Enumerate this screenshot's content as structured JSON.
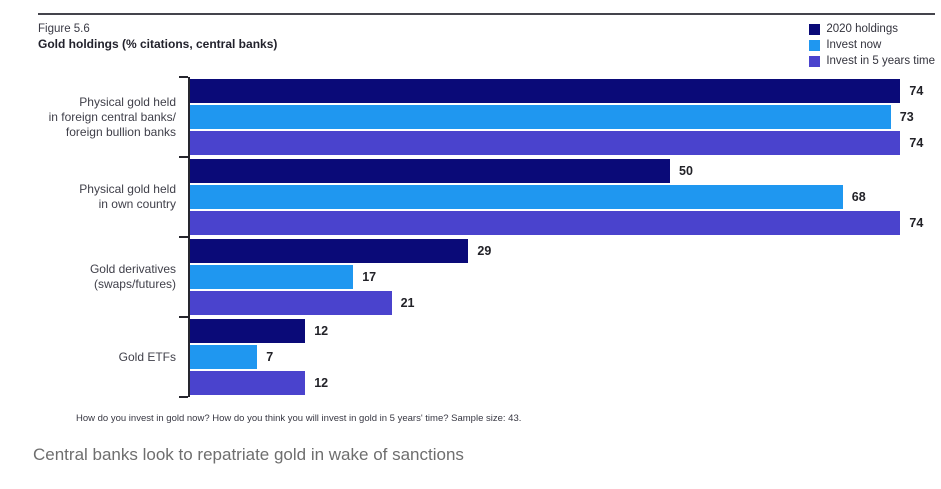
{
  "figure": {
    "label": "Figure 5.6",
    "title": "Gold holdings (% citations, central banks)",
    "footnote": "How do you invest in gold now? How do you think you will invest in gold in 5 years' time? Sample size: 43.",
    "caption": "Central banks look to repatriate gold in wake of sanctions"
  },
  "colors": {
    "series_2020_holdings": "#0a0a78",
    "series_invest_now": "#1f97f0",
    "series_invest_5_years": "#4a43cd",
    "axis": "#26262e",
    "rule": "#44444c",
    "caption_text": "#6e6e6e"
  },
  "chart_data": {
    "type": "bar",
    "orientation": "horizontal",
    "title": "Gold holdings (% citations, central banks)",
    "xlabel": "",
    "ylabel": "",
    "grid": false,
    "legend_position": "top-right",
    "value_axis_range": [
      0,
      77
    ],
    "data_labels": true,
    "categories": [
      "Physical gold held\nin foreign central banks/\nforeign bullion banks",
      "Physical gold held\nin own country",
      "Gold derivatives\n(swaps/futures)",
      "Gold ETFs"
    ],
    "series": [
      {
        "name": "2020 holdings",
        "color": "#0a0a78",
        "values": [
          74,
          50,
          29,
          12
        ]
      },
      {
        "name": "Invest now",
        "color": "#1f97f0",
        "values": [
          73,
          68,
          17,
          7
        ]
      },
      {
        "name": "Invest in 5 years time",
        "color": "#4a43cd",
        "values": [
          74,
          74,
          21,
          12
        ]
      }
    ]
  }
}
